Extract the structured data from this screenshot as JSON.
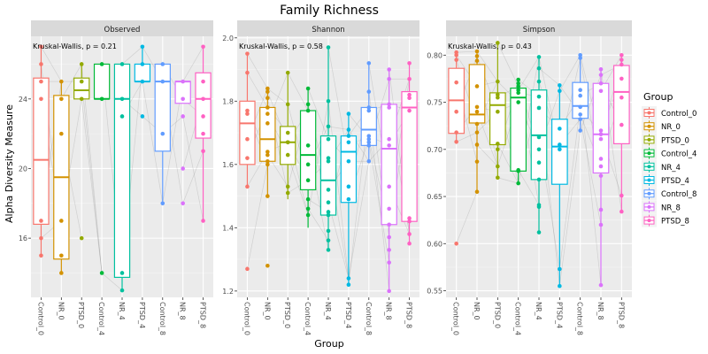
{
  "chart_data": {
    "type": "box",
    "title": "Family Richness",
    "xlabel": "Group",
    "ylabel": "Alpha Diversity Measure",
    "categories": [
      "Control_0",
      "NR_0",
      "PTSD_0",
      "Control_4",
      "NR_4",
      "PTSD_4",
      "Control_8",
      "NR_8",
      "PTSD_8"
    ],
    "colors": [
      "#F8766D",
      "#D39200",
      "#93AA00",
      "#00BA38",
      "#00C19F",
      "#00B9E3",
      "#619CFF",
      "#DB72FB",
      "#FF61C3"
    ],
    "legend": {
      "title": "Group",
      "position": "right"
    },
    "grid": true,
    "facets": [
      {
        "name": "Observed",
        "annotation": "Kruskal-Wallis, p = 0.21",
        "ylim": [
          12.6,
          27.6
        ],
        "yticks": [
          16,
          20,
          24
        ],
        "boxes": [
          {
            "q1": 16.8,
            "median": 20.5,
            "q3": 25.2,
            "whisker_low": 15,
            "whisker_high": 27,
            "points": [
              27,
              26,
              25,
              24,
              17,
              16,
              15
            ]
          },
          {
            "q1": 14.8,
            "median": 19.5,
            "q3": 24.2,
            "whisker_low": 14,
            "whisker_high": 25,
            "points": [
              25,
              24,
              22,
              17,
              15,
              14
            ]
          },
          {
            "q1": 24,
            "median": 24.5,
            "q3": 25.2,
            "whisker_low": 24,
            "whisker_high": 26,
            "points": [
              26,
              25,
              24,
              16
            ]
          },
          {
            "q1": 24,
            "median": 24,
            "q3": 26,
            "whisker_low": 24,
            "whisker_high": 26,
            "points": [
              26,
              24,
              14
            ]
          },
          {
            "q1": 13.75,
            "median": 24,
            "q3": 26,
            "whisker_low": 13,
            "whisker_high": 26,
            "points": [
              26,
              24,
              23,
              14,
              13
            ]
          },
          {
            "q1": 25,
            "median": 25,
            "q3": 26,
            "whisker_low": 25,
            "whisker_high": 27,
            "points": [
              27,
              26,
              25,
              23
            ]
          },
          {
            "q1": 21,
            "median": 25,
            "q3": 26,
            "whisker_low": 18,
            "whisker_high": 26,
            "points": [
              26,
              25,
              22,
              18
            ]
          },
          {
            "q1": 23.75,
            "median": 25,
            "q3": 25,
            "whisker_low": 25,
            "whisker_high": 25,
            "points": [
              25,
              24,
              23,
              20,
              18
            ]
          },
          {
            "q1": 21.75,
            "median": 24,
            "q3": 25.5,
            "whisker_low": 17,
            "whisker_high": 27,
            "points": [
              27,
              25,
              24,
              23,
              22,
              21,
              17
            ]
          }
        ]
      },
      {
        "name": "Shannon",
        "annotation": "Kruskal-Wallis, p = 0.58",
        "ylim": [
          1.18,
          2.005
        ],
        "yticks": [
          1.2,
          1.4,
          1.6,
          1.8,
          2.0
        ],
        "boxes": [
          {
            "q1": 1.6,
            "median": 1.73,
            "q3": 1.8,
            "whisker_low": 1.53,
            "whisker_high": 1.95,
            "points": [
              1.95,
              1.89,
              1.77,
              1.76,
              1.68,
              1.62,
              1.53,
              1.27
            ]
          },
          {
            "q1": 1.61,
            "median": 1.68,
            "q3": 1.78,
            "whisker_low": 1.5,
            "whisker_high": 1.84,
            "points": [
              1.84,
              1.83,
              1.81,
              1.78,
              1.76,
              1.73,
              1.64,
              1.63,
              1.61,
              1.6,
              1.5,
              1.28
            ]
          },
          {
            "q1": 1.6,
            "median": 1.67,
            "q3": 1.72,
            "whisker_low": 1.49,
            "whisker_high": 1.89,
            "points": [
              1.89,
              1.79,
              1.7,
              1.67,
              1.67,
              1.63,
              1.53,
              1.51
            ]
          },
          {
            "q1": 1.52,
            "median": 1.63,
            "q3": 1.77,
            "whisker_low": 1.4,
            "whisker_high": 1.84,
            "points": [
              1.84,
              1.79,
              1.77,
              1.66,
              1.6,
              1.55,
              1.49,
              1.46,
              1.44
            ]
          },
          {
            "q1": 1.44,
            "median": 1.55,
            "q3": 1.69,
            "whisker_low": 1.33,
            "whisker_high": 1.97,
            "points": [
              1.97,
              1.8,
              1.72,
              1.68,
              1.62,
              1.61,
              1.52,
              1.48,
              1.45,
              1.44,
              1.39,
              1.36,
              1.33
            ]
          },
          {
            "q1": 1.48,
            "median": 1.64,
            "q3": 1.69,
            "whisker_low": 1.22,
            "whisker_high": 1.76,
            "points": [
              1.76,
              1.71,
              1.69,
              1.67,
              1.61,
              1.53,
              1.49,
              1.24,
              1.22
            ]
          },
          {
            "q1": 1.66,
            "median": 1.71,
            "q3": 1.78,
            "whisker_low": 1.61,
            "whisker_high": 1.92,
            "points": [
              1.92,
              1.83,
              1.78,
              1.77,
              1.69,
              1.68,
              1.67,
              1.66,
              1.61
            ]
          },
          {
            "q1": 1.41,
            "median": 1.65,
            "q3": 1.79,
            "whisker_low": 1.2,
            "whisker_high": 1.9,
            "points": [
              1.9,
              1.87,
              1.79,
              1.78,
              1.68,
              1.66,
              1.53,
              1.46,
              1.41,
              1.37,
              1.33,
              1.29,
              1.2
            ]
          },
          {
            "q1": 1.42,
            "median": 1.78,
            "q3": 1.83,
            "whisker_low": 1.35,
            "whisker_high": 1.92,
            "points": [
              1.92,
              1.87,
              1.82,
              1.81,
              1.77,
              1.43,
              1.42,
              1.38,
              1.35
            ]
          }
        ]
      },
      {
        "name": "Simpson",
        "annotation": "Kruskal-Wallis, p = 0.43",
        "ylim": [
          0.543,
          0.82
        ],
        "yticks": [
          0.55,
          0.6,
          0.65,
          0.7,
          0.75,
          0.8
        ],
        "boxes": [
          {
            "q1": 0.717,
            "median": 0.752,
            "q3": 0.786,
            "whisker_low": 0.707,
            "whisker_high": 0.803,
            "points": [
              0.803,
              0.8,
              0.795,
              0.771,
              0.74,
              0.718,
              0.708,
              0.6
            ]
          },
          {
            "q1": 0.728,
            "median": 0.737,
            "q3": 0.79,
            "whisker_low": 0.655,
            "whisker_high": 0.804,
            "points": [
              0.804,
              0.799,
              0.794,
              0.767,
              0.745,
              0.74,
              0.727,
              0.718,
              0.705,
              0.687,
              0.655
            ]
          },
          {
            "q1": 0.705,
            "median": 0.747,
            "q3": 0.76,
            "whisker_low": 0.67,
            "whisker_high": 0.813,
            "points": [
              0.813,
              0.772,
              0.758,
              0.755,
              0.74,
              0.706,
              0.7,
              0.682,
              0.67
            ]
          },
          {
            "q1": 0.677,
            "median": 0.755,
            "q3": 0.765,
            "whisker_low": 0.664,
            "whisker_high": 0.774,
            "points": [
              0.774,
              0.77,
              0.767,
              0.763,
              0.76,
              0.75,
              0.678,
              0.677,
              0.664
            ]
          },
          {
            "q1": 0.668,
            "median": 0.715,
            "q3": 0.763,
            "whisker_low": 0.612,
            "whisker_high": 0.798,
            "points": [
              0.798,
              0.786,
              0.772,
              0.756,
              0.744,
              0.713,
              0.7,
              0.686,
              0.668,
              0.641,
              0.639,
              0.612
            ]
          },
          {
            "q1": 0.663,
            "median": 0.703,
            "q3": 0.732,
            "whisker_low": 0.555,
            "whisker_high": 0.768,
            "points": [
              0.768,
              0.762,
              0.722,
              0.705,
              0.7,
              0.573,
              0.555
            ]
          },
          {
            "q1": 0.733,
            "median": 0.746,
            "q3": 0.771,
            "whisker_low": 0.72,
            "whisker_high": 0.8,
            "points": [
              0.8,
              0.797,
              0.763,
              0.757,
              0.745,
              0.737,
              0.732,
              0.72
            ]
          },
          {
            "q1": 0.675,
            "median": 0.716,
            "q3": 0.77,
            "whisker_low": 0.556,
            "whisker_high": 0.785,
            "points": [
              0.785,
              0.779,
              0.77,
              0.762,
              0.72,
              0.716,
              0.711,
              0.69,
              0.682,
              0.672,
              0.636,
              0.62,
              0.556
            ]
          },
          {
            "q1": 0.706,
            "median": 0.761,
            "q3": 0.789,
            "whisker_low": 0.634,
            "whisker_high": 0.8,
            "points": [
              0.8,
              0.795,
              0.79,
              0.775,
              0.755,
              0.726,
              0.651,
              0.634
            ]
          }
        ]
      }
    ]
  }
}
